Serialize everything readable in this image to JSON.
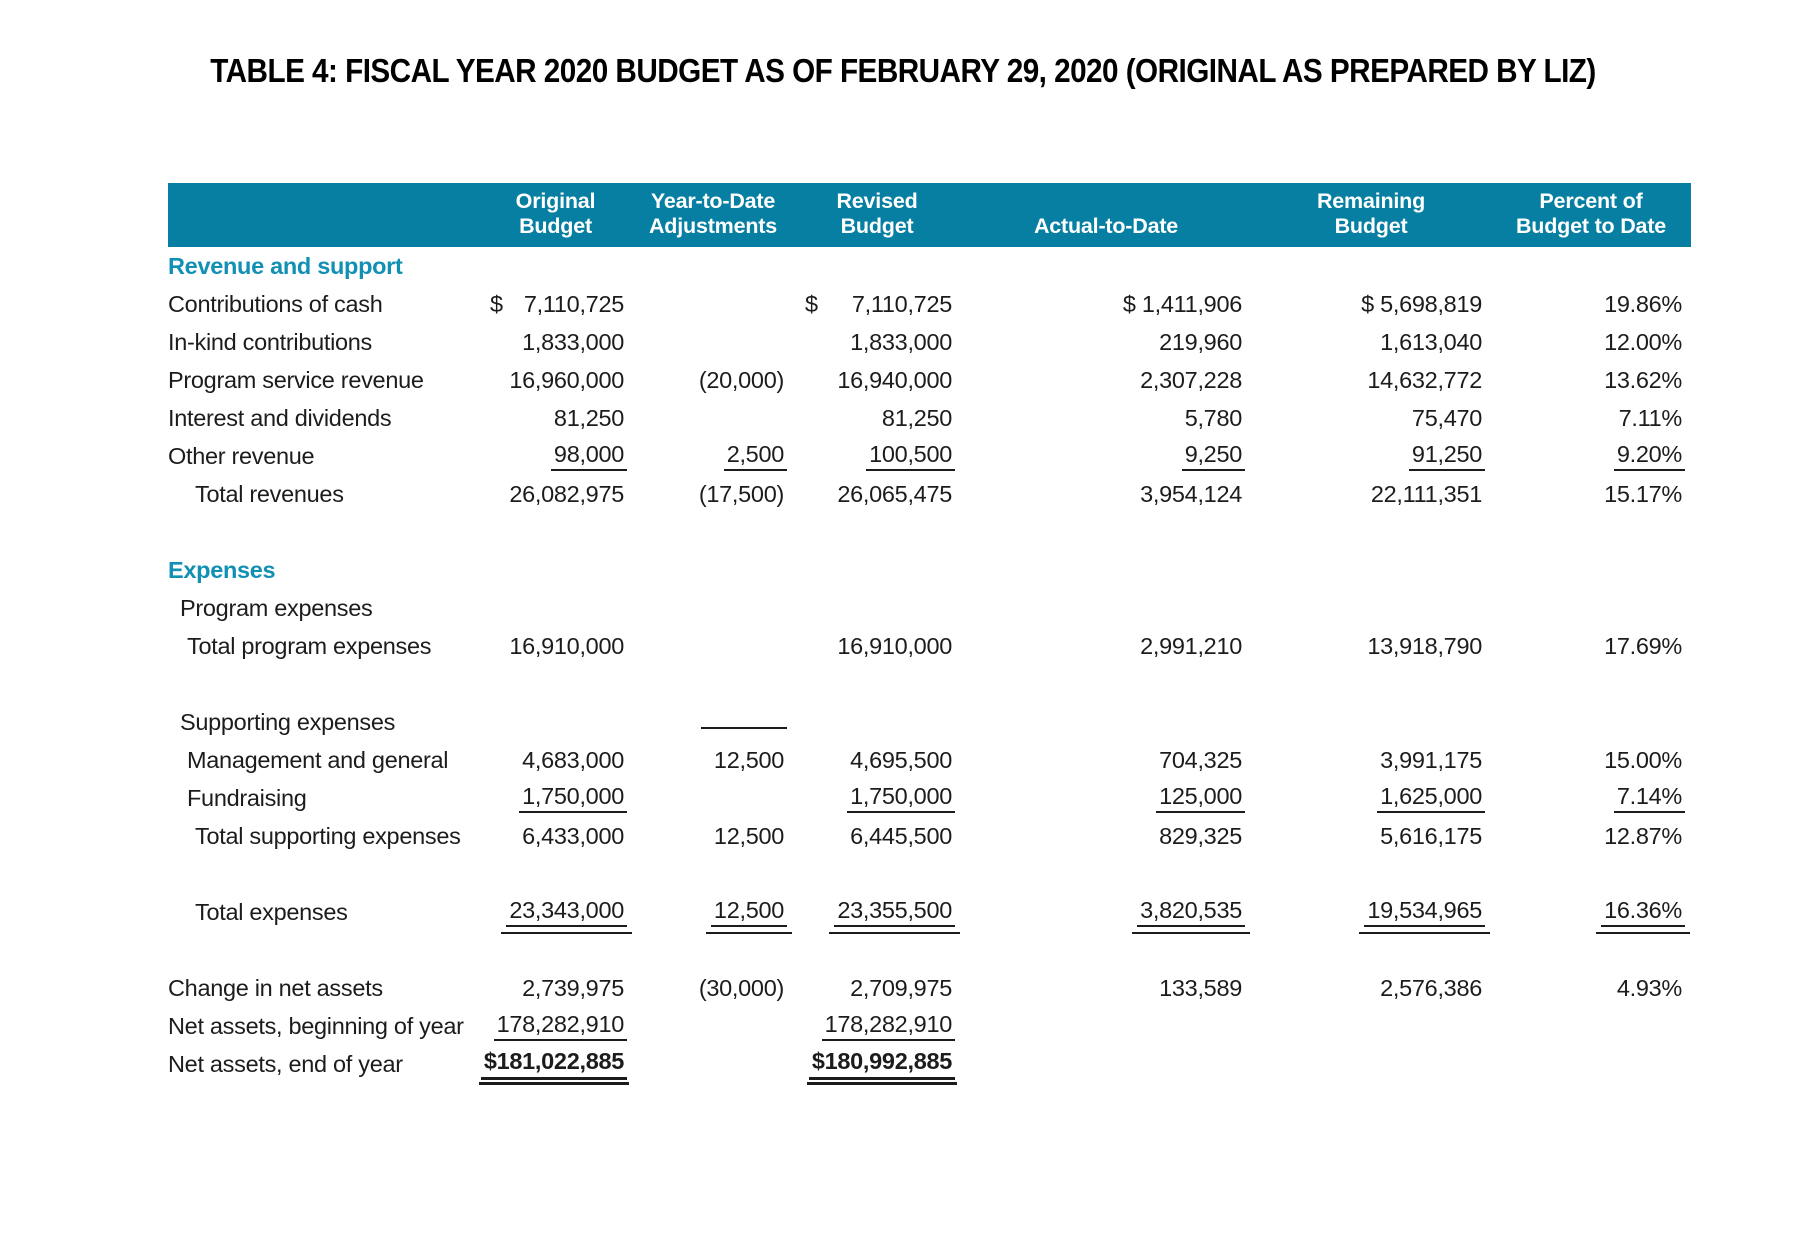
{
  "title": "TABLE 4: FISCAL YEAR 2020 BUDGET AS OF FEBRUARY 29, 2020 (ORIGINAL AS PREPARED BY LIZ)",
  "colors": {
    "header_bg": "#067fa2",
    "section_heading": "#1290b4",
    "text": "#1c1c1c",
    "page_bg": "#ffffff",
    "header_text": "#ffffff"
  },
  "table": {
    "columns": [
      {
        "key": "row-label",
        "label": ""
      },
      {
        "key": "original-budget",
        "label": "Original Budget"
      },
      {
        "key": "ytd-adjustments",
        "label": "Year-to-Date\nAdjustments"
      },
      {
        "key": "revised-budget",
        "label": "Revised\nBudget"
      },
      {
        "key": "actual-to-date",
        "label": "Actual-to-Date"
      },
      {
        "key": "remaining-budget",
        "label": "Remaining\nBudget"
      },
      {
        "key": "percent-of-budget",
        "label": "Percent of\nBudget to Date"
      }
    ],
    "rows": [
      {
        "kind": "section",
        "label": "Revenue and support",
        "indent": 0
      },
      {
        "kind": "item",
        "label": "Contributions of cash",
        "indent": 0,
        "cells": [
          {
            "v": "7,110,725",
            "cur": "acct"
          },
          {},
          {
            "v": "7,110,725",
            "cur": "acct"
          },
          {
            "v": "$ 1,411,906"
          },
          {
            "v": "$ 5,698,819"
          },
          {
            "v": "19.86%"
          }
        ]
      },
      {
        "kind": "item",
        "label": "In-kind contributions",
        "indent": 0,
        "cells": [
          {
            "v": "1,833,000"
          },
          {},
          {
            "v": "1,833,000"
          },
          {
            "v": "219,960"
          },
          {
            "v": "1,613,040"
          },
          {
            "v": "12.00%"
          }
        ]
      },
      {
        "kind": "item",
        "label": "Program service revenue",
        "indent": 0,
        "cells": [
          {
            "v": "16,960,000"
          },
          {
            "v": "(20,000)"
          },
          {
            "v": "16,940,000"
          },
          {
            "v": "2,307,228"
          },
          {
            "v": "14,632,772"
          },
          {
            "v": "13.62%"
          }
        ]
      },
      {
        "kind": "item",
        "label": "Interest and dividends",
        "indent": 0,
        "cells": [
          {
            "v": "81,250"
          },
          {},
          {
            "v": "81,250"
          },
          {
            "v": "5,780"
          },
          {
            "v": "75,470"
          },
          {
            "v": "7.11%"
          }
        ]
      },
      {
        "kind": "item",
        "label": "Other revenue",
        "indent": 0,
        "cells": [
          {
            "v": "98,000",
            "u": "s"
          },
          {
            "v": "2,500",
            "u": "s"
          },
          {
            "v": "100,500",
            "u": "s"
          },
          {
            "v": "9,250",
            "u": "s"
          },
          {
            "v": "91,250",
            "u": "s"
          },
          {
            "v": "9.20%",
            "u": "s"
          }
        ]
      },
      {
        "kind": "item",
        "label": "Total revenues",
        "indent": 3,
        "cells": [
          {
            "v": "26,082,975"
          },
          {
            "v": "(17,500)"
          },
          {
            "v": "26,065,475"
          },
          {
            "v": "3,954,124"
          },
          {
            "v": "22,111,351"
          },
          {
            "v": "15.17%"
          }
        ]
      },
      {
        "kind": "spacer"
      },
      {
        "kind": "section",
        "label": "Expenses",
        "indent": 0
      },
      {
        "kind": "item",
        "label": "Program expenses",
        "indent": 1
      },
      {
        "kind": "item",
        "label": "Total program expenses",
        "indent": 2,
        "cells": [
          {
            "v": "16,910,000"
          },
          {},
          {
            "v": "16,910,000"
          },
          {
            "v": "2,991,210"
          },
          {
            "v": "13,918,790"
          },
          {
            "v": "17.69%"
          }
        ]
      },
      {
        "kind": "spacer"
      },
      {
        "kind": "item",
        "label": "Supporting expenses",
        "indent": 1,
        "cells": [
          {},
          {
            "mark": true
          },
          {},
          {},
          {},
          {}
        ]
      },
      {
        "kind": "item",
        "label": "Management and general",
        "indent": 2,
        "cells": [
          {
            "v": "4,683,000"
          },
          {
            "v": "12,500"
          },
          {
            "v": "4,695,500"
          },
          {
            "v": "704,325"
          },
          {
            "v": "3,991,175"
          },
          {
            "v": "15.00%"
          }
        ]
      },
      {
        "kind": "item",
        "label": "Fundraising",
        "indent": 2,
        "cells": [
          {
            "v": "1,750,000",
            "u": "s"
          },
          {},
          {
            "v": "1,750,000",
            "u": "s"
          },
          {
            "v": "125,000",
            "u": "s"
          },
          {
            "v": "1,625,000",
            "u": "s"
          },
          {
            "v": "7.14%",
            "u": "s"
          }
        ]
      },
      {
        "kind": "item",
        "label": "Total supporting expenses",
        "indent": 3,
        "cells": [
          {
            "v": "6,433,000"
          },
          {
            "v": "12,500"
          },
          {
            "v": "6,445,500"
          },
          {
            "v": "829,325"
          },
          {
            "v": "5,616,175"
          },
          {
            "v": "12.87%"
          }
        ]
      },
      {
        "kind": "spacer"
      },
      {
        "kind": "item",
        "label": "Total expenses",
        "indent": 3,
        "cells": [
          {
            "v": "23,343,000",
            "u": "t"
          },
          {
            "v": "12,500",
            "u": "t"
          },
          {
            "v": "23,355,500",
            "u": "t"
          },
          {
            "v": "3,820,535",
            "u": "t"
          },
          {
            "v": "19,534,965",
            "u": "t"
          },
          {
            "v": "16.36%",
            "u": "t"
          }
        ]
      },
      {
        "kind": "spacer"
      },
      {
        "kind": "item",
        "label": "Change in net assets",
        "indent": 0,
        "cells": [
          {
            "v": "2,739,975"
          },
          {
            "v": "(30,000)"
          },
          {
            "v": "2,709,975"
          },
          {
            "v": "133,589"
          },
          {
            "v": "2,576,386"
          },
          {
            "v": "4.93%"
          }
        ]
      },
      {
        "kind": "item",
        "label": "Net assets, beginning of year",
        "indent": 0,
        "cells": [
          {
            "v": "178,282,910",
            "u": "s"
          },
          {},
          {
            "v": "178,282,910",
            "u": "s"
          },
          {},
          {},
          {}
        ]
      },
      {
        "kind": "item",
        "label": "Net assets, end of year",
        "indent": 0,
        "cells": [
          {
            "v": "$181,022,885",
            "u": "d",
            "b": true
          },
          {},
          {
            "v": "$180,992,885",
            "u": "d",
            "b": true
          },
          {},
          {},
          {}
        ]
      }
    ]
  }
}
